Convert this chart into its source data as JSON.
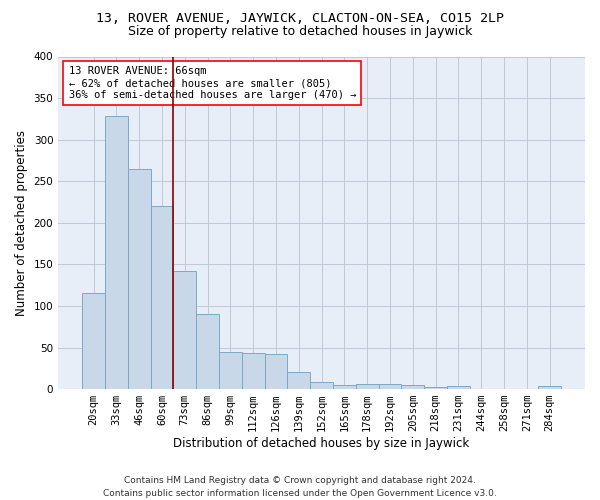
{
  "title": "13, ROVER AVENUE, JAYWICK, CLACTON-ON-SEA, CO15 2LP",
  "subtitle": "Size of property relative to detached houses in Jaywick",
  "xlabel": "Distribution of detached houses by size in Jaywick",
  "ylabel": "Number of detached properties",
  "categories": [
    "20sqm",
    "33sqm",
    "46sqm",
    "60sqm",
    "73sqm",
    "86sqm",
    "99sqm",
    "112sqm",
    "126sqm",
    "139sqm",
    "152sqm",
    "165sqm",
    "178sqm",
    "192sqm",
    "205sqm",
    "218sqm",
    "231sqm",
    "244sqm",
    "258sqm",
    "271sqm",
    "284sqm"
  ],
  "values": [
    115,
    328,
    265,
    220,
    142,
    90,
    45,
    43,
    42,
    20,
    9,
    5,
    6,
    6,
    5,
    3,
    4,
    0,
    0,
    0,
    4
  ],
  "bar_color": "#c8d8e8",
  "bar_edge_color": "#7aaac8",
  "grid_color": "#c0c8d8",
  "bg_color": "#e8eef8",
  "red_line_x": 3.5,
  "annotation_line1": "13 ROVER AVENUE: 66sqm",
  "annotation_line2": "← 62% of detached houses are smaller (805)",
  "annotation_line3": "36% of semi-detached houses are larger (470) →",
  "ylim": [
    0,
    400
  ],
  "yticks": [
    0,
    50,
    100,
    150,
    200,
    250,
    300,
    350,
    400
  ],
  "footer": "Contains HM Land Registry data © Crown copyright and database right 2024.\nContains public sector information licensed under the Open Government Licence v3.0.",
  "title_fontsize": 9.5,
  "subtitle_fontsize": 9,
  "xlabel_fontsize": 8.5,
  "ylabel_fontsize": 8.5,
  "tick_fontsize": 7.5,
  "annotation_fontsize": 7.5,
  "footer_fontsize": 6.5
}
